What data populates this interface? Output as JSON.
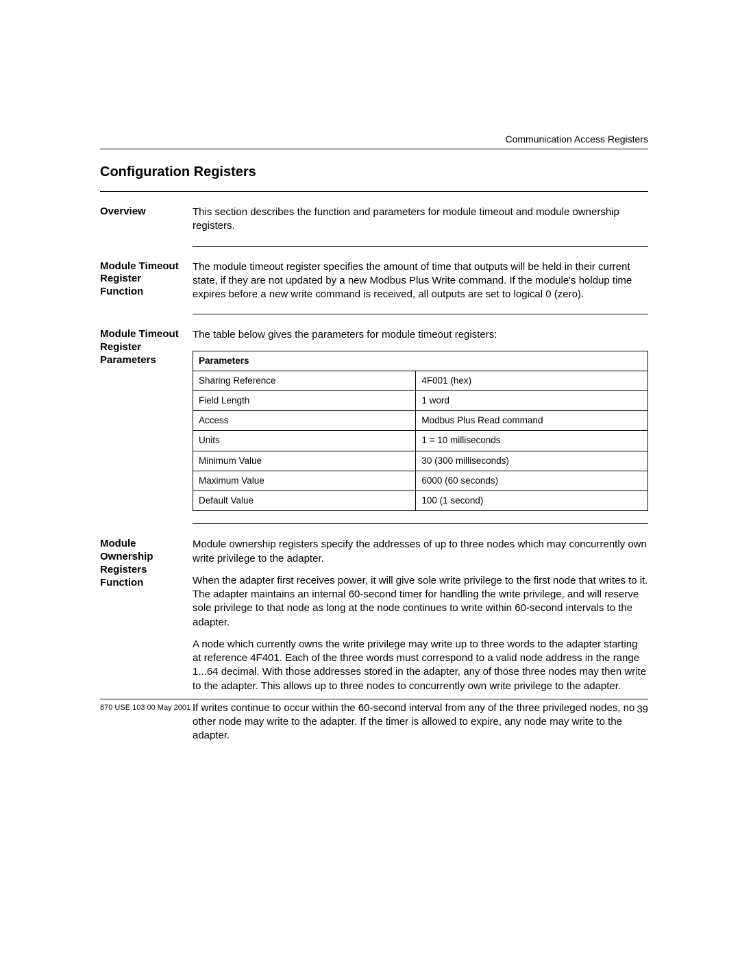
{
  "running_header": "Communication Access Registers",
  "section_title": "Configuration Registers",
  "overview": {
    "label": "Overview",
    "text": "This section describes the function and parameters for module timeout and module ownership registers."
  },
  "timeout_function": {
    "label": "Module Timeout Register Function",
    "text": "The module timeout register specifies the amount of time that outputs will be held in their current state, if they are not updated by a new Modbus Plus Write command. If the module's holdup time expires before a new write command is received, all outputs are set to logical 0 (zero)."
  },
  "timeout_params": {
    "label": "Module Timeout Register Parameters",
    "intro": "The table below gives the parameters for module timeout registers:",
    "table_header": "Parameters",
    "rows": [
      {
        "name": "Sharing Reference",
        "value": "4F001 (hex)"
      },
      {
        "name": "Field Length",
        "value": "1 word"
      },
      {
        "name": "Access",
        "value": "Modbus Plus Read command"
      },
      {
        "name": "Units",
        "value": "1 = 10 milliseconds"
      },
      {
        "name": "Minimum Value",
        "value": "30 (300 milliseconds)"
      },
      {
        "name": "Maximum Value",
        "value": "6000 (60 seconds)"
      },
      {
        "name": "Default Value",
        "value": "100 (1 second)"
      }
    ]
  },
  "ownership_function": {
    "label": "Module Ownership Registers Function",
    "p1": "Module ownership registers specify the addresses of up to three nodes which may concurrently own write privilege to the adapter.",
    "p2": "When the adapter first receives power, it will give sole write privilege to the first node that writes to it.  The adapter maintains an internal 60-second timer for handling the write privilege, and will reserve sole privilege to that node as long at the node continues to write within 60-second intervals to the adapter.",
    "p3": "A node which currently owns the write privilege may write up to three words to the adapter starting at reference 4F401.  Each of the three words must correspond to a valid node address in the range 1...64 decimal.  With those addresses stored in the adapter, any of those three nodes may then write to the adapter.  This allows up to three nodes to concurrently own write privilege to the adapter.",
    "p4": "If writes continue to occur within the 60-second interval from any of the three privileged nodes, no other node may write to the adapter.  If the timer is allowed to expire, any node may write to the adapter."
  },
  "footer": {
    "doc_id": "870 USE 103 00 May 2001",
    "page_number": "39"
  }
}
